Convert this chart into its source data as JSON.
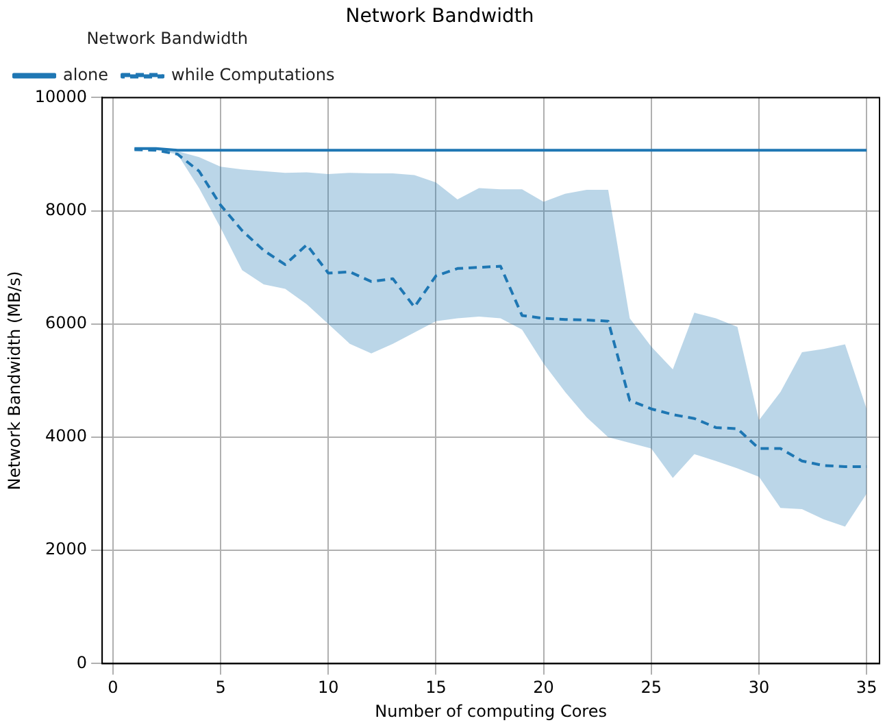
{
  "chart_data": {
    "type": "line",
    "title": "Network Bandwidth",
    "xlabel": "Number of computing Cores",
    "ylabel": "Network Bandwidth (MB/s)",
    "legend_title": "Network Bandwidth",
    "x": [
      1,
      2,
      3,
      4,
      5,
      6,
      7,
      8,
      9,
      10,
      11,
      12,
      13,
      14,
      15,
      16,
      17,
      18,
      19,
      20,
      21,
      22,
      23,
      24,
      25,
      26,
      27,
      28,
      29,
      30,
      31,
      32,
      33,
      34,
      35
    ],
    "series": [
      {
        "name": "alone",
        "color": "#1f77b4",
        "line_style": "solid",
        "values": [
          9100,
          9100,
          9070,
          9070,
          9070,
          9070,
          9070,
          9070,
          9070,
          9070,
          9070,
          9070,
          9070,
          9070,
          9070,
          9070,
          9070,
          9070,
          9070,
          9070,
          9070,
          9070,
          9070,
          9070,
          9070,
          9070,
          9070,
          9070,
          9070,
          9070,
          9070,
          9070,
          9070,
          9070,
          9070
        ]
      },
      {
        "name": "while Computations",
        "color": "#1f77b4",
        "line_style": "dashed",
        "values": [
          9080,
          9070,
          9000,
          8700,
          8100,
          7650,
          7300,
          7050,
          7400,
          6900,
          6920,
          6750,
          6800,
          6300,
          6850,
          6980,
          7000,
          7020,
          6150,
          6100,
          6080,
          6070,
          6050,
          4650,
          4500,
          4400,
          4330,
          4170,
          4150,
          3800,
          3800,
          3580,
          3500,
          3480,
          3480
        ],
        "upper": [
          9100,
          9100,
          9050,
          8950,
          8780,
          8730,
          8700,
          8670,
          8680,
          8650,
          8670,
          8660,
          8660,
          8630,
          8500,
          8200,
          8400,
          8380,
          8380,
          8160,
          8300,
          8370,
          8370,
          6100,
          5600,
          5200,
          6200,
          6100,
          5950,
          4300,
          4800,
          5500,
          5560,
          5640,
          4500
        ],
        "lower": [
          9080,
          9070,
          9000,
          8400,
          7700,
          6950,
          6700,
          6620,
          6350,
          6000,
          5650,
          5480,
          5650,
          5850,
          6050,
          6100,
          6130,
          6100,
          5900,
          5300,
          4800,
          4350,
          4000,
          3900,
          3800,
          3280,
          3700,
          3580,
          3450,
          3300,
          2750,
          2730,
          2550,
          2420,
          3000
        ]
      }
    ],
    "xlim": [
      -0.5,
      35.6
    ],
    "xticks": [
      0,
      5,
      10,
      15,
      20,
      25,
      30,
      35
    ],
    "ylim": [
      0,
      10000
    ],
    "yticks": [
      0,
      2000,
      4000,
      6000,
      8000,
      10000
    ],
    "grid": true,
    "legend": "top left",
    "marker": "none"
  }
}
